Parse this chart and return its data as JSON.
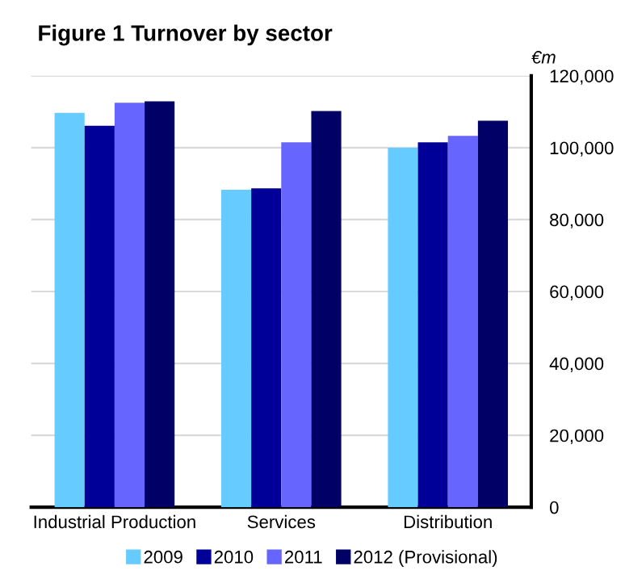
{
  "chart_data": {
    "type": "bar",
    "title": "Figure 1 Turnover by sector",
    "ylabel": "€m",
    "categories": [
      "Industrial Production",
      "Services",
      "Distribution"
    ],
    "series": [
      {
        "name": "2009",
        "color": "#66ccff",
        "values": [
          109700,
          88300,
          100000
        ]
      },
      {
        "name": "2010",
        "color": "#000099",
        "values": [
          106100,
          88700,
          101500
        ]
      },
      {
        "name": "2011",
        "color": "#6666ff",
        "values": [
          112500,
          101500,
          103300
        ]
      },
      {
        "name": "2012 (Provisional)",
        "color": "#000066",
        "values": [
          112900,
          110200,
          107500
        ]
      }
    ],
    "ylim": [
      0,
      120000
    ],
    "yticks": [
      {
        "value": 0,
        "label": "0"
      },
      {
        "value": 20000,
        "label": "20,000"
      },
      {
        "value": 40000,
        "label": "40,000"
      },
      {
        "value": 60000,
        "label": "60,000"
      },
      {
        "value": 80000,
        "label": "80,000"
      },
      {
        "value": 100000,
        "label": "100,000"
      },
      {
        "value": 120000,
        "label": "120,000"
      }
    ],
    "grid": "y",
    "legend": "bottom"
  }
}
